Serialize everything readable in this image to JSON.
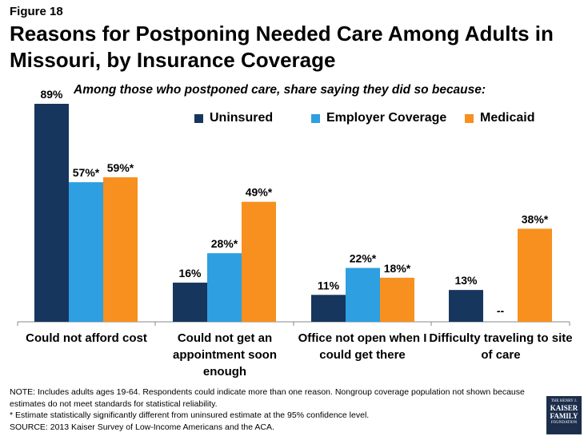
{
  "figure_label": "Figure 18",
  "title": "Reasons for Postponing Needed Care Among Adults in Missouri, by Insurance Coverage",
  "subtitle": "Among those who postponed care, share saying they did so because:",
  "colors": {
    "uninsured": "#17365d",
    "employer": "#2e9fe0",
    "medicaid": "#f7901e"
  },
  "chart_data": {
    "type": "bar",
    "title": "Reasons for Postponing Needed Care Among Adults in Missouri, by Insurance Coverage",
    "categories": [
      "Could not afford cost",
      "Could not get an appointment soon enough",
      "Office not open when I could get there",
      "Difficulty traveling to site of care"
    ],
    "category_lines": [
      [
        "Could not afford cost"
      ],
      [
        "Could not get an",
        "appointment soon",
        "enough"
      ],
      [
        "Office not open when I",
        "could get there"
      ],
      [
        "Difficulty traveling to site",
        "of care"
      ]
    ],
    "series": [
      {
        "name": "Uninsured",
        "color": "#17365d",
        "values": [
          89,
          16,
          11,
          13
        ],
        "labels": [
          "89%",
          "16%",
          "11%",
          "13%"
        ]
      },
      {
        "name": "Employer Coverage",
        "color": "#2e9fe0",
        "values": [
          57,
          28,
          22,
          null
        ],
        "labels": [
          "57%*",
          "28%*",
          "22%*",
          "--"
        ]
      },
      {
        "name": "Medicaid",
        "color": "#f7901e",
        "values": [
          59,
          49,
          18,
          38
        ],
        "labels": [
          "59%*",
          "49%*",
          "18%*",
          "38%*"
        ]
      }
    ],
    "ylim": [
      0,
      100
    ],
    "xlabel": "",
    "ylabel": "",
    "legend_position": "top-right"
  },
  "notes": [
    "NOTE: Includes adults ages 19-64. Respondents could indicate more than one reason. Nongroup coverage population not shown because estimates do not meet standards for statistical reliability.",
    "* Estimate statistically significantly different from uninsured estimate at the 95% confidence level.",
    "SOURCE: 2013 Kaiser Survey of Low-Income Americans and the ACA."
  ],
  "logo": {
    "line1": "THE HENRY J.",
    "line2": "KAISER",
    "line3": "FAMILY",
    "line4": "FOUNDATION"
  }
}
